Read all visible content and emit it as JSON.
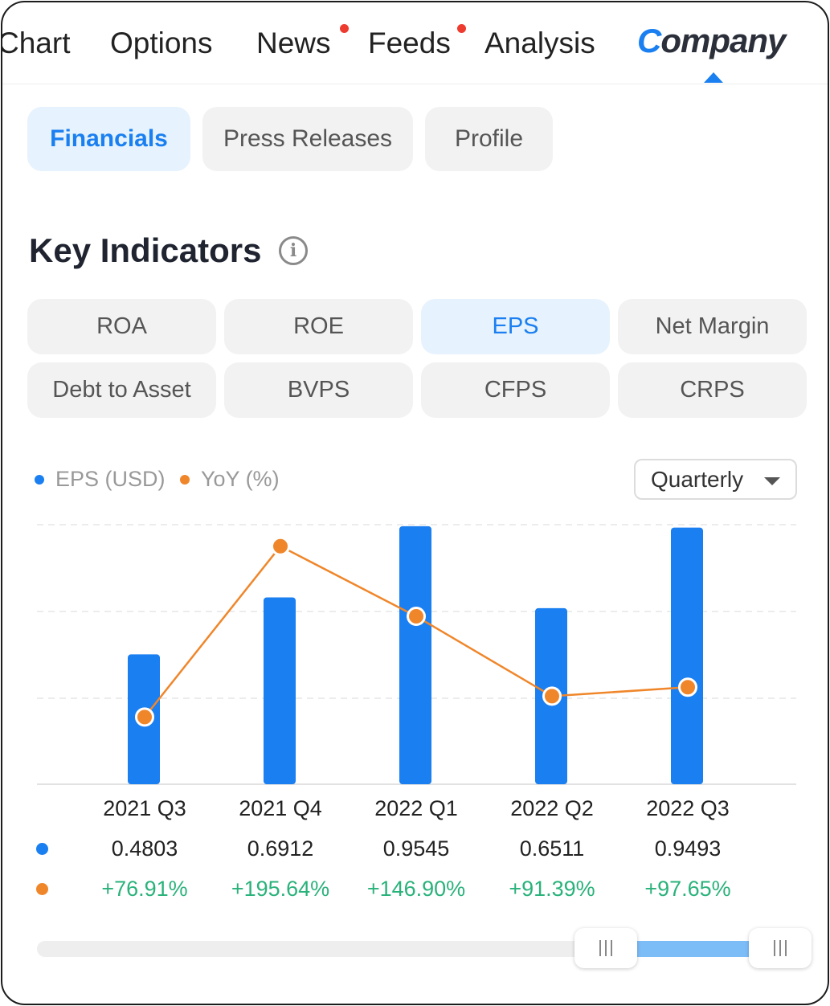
{
  "top_tabs": {
    "chart": "Chart",
    "options": "Options",
    "news": "News",
    "feeds": "Feeds",
    "analysis": "Analysis",
    "company_first": "C",
    "company_rest": "ompany"
  },
  "sub_tabs": {
    "financials": "Financials",
    "press_releases": "Press Releases",
    "profile": "Profile"
  },
  "section_title": "Key Indicators",
  "info_glyph": "i",
  "indicators": [
    "ROA",
    "ROE",
    "EPS",
    "Net Margin",
    "Debt to Asset",
    "BVPS",
    "CFPS",
    "CRPS"
  ],
  "selected_indicator": "EPS",
  "legend": {
    "eps": "EPS (USD)",
    "yoy": "YoY (%)"
  },
  "period_select": "Quarterly",
  "colors": {
    "accent": "#1a7ff0",
    "yoy_line": "#f0862a",
    "positive": "#2ab27b",
    "notification": "#ee3b2f"
  },
  "chart_data": {
    "type": "bar",
    "categories": [
      "2021 Q3",
      "2021 Q4",
      "2022 Q1",
      "2022 Q2",
      "2022 Q3"
    ],
    "series": [
      {
        "name": "EPS (USD)",
        "type": "bar",
        "values": [
          0.4803,
          0.6912,
          0.9545,
          0.6511,
          0.9493
        ]
      },
      {
        "name": "YoY (%)",
        "type": "line",
        "values": [
          76.91,
          195.64,
          146.9,
          91.39,
          97.65
        ]
      }
    ],
    "eps_labels": [
      "0.4803",
      "0.6912",
      "0.9545",
      "0.6511",
      "0.9493"
    ],
    "yoy_labels": [
      "+76.91%",
      "+195.64%",
      "+146.90%",
      "+91.39%",
      "+97.65%"
    ],
    "grid": true,
    "legend_position": "top-left"
  },
  "range_slider": {
    "selected_start": 0.78,
    "selected_end": 0.97
  }
}
